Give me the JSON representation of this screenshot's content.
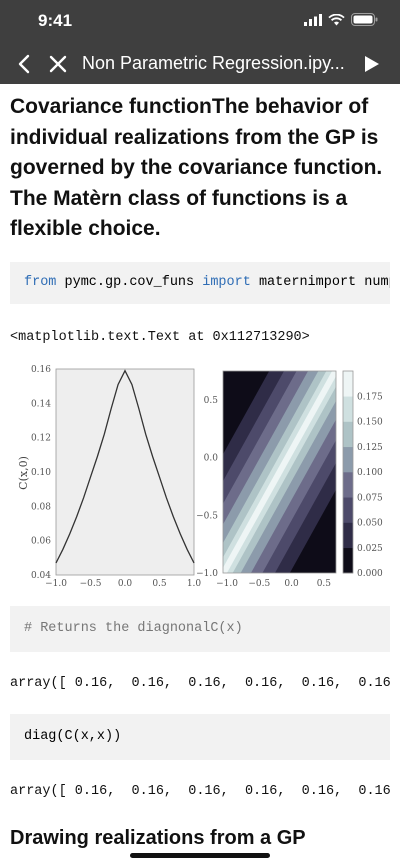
{
  "status_bar": {
    "time": "9:41"
  },
  "nav": {
    "title": "Non Parametric Regression.ipy..."
  },
  "heading": "Covariance functionThe behavior of individual realizations from the GP is governed by the covariance function. The Matèrn class of functions is a flexible choice.",
  "cells": {
    "code1": {
      "kw_from": "from",
      "module": " pymc.gp.cov_funs ",
      "kw_import": "import",
      "rest": " maternimport numpy"
    },
    "out1": "<matplotlib.text.Text at 0x112713290>",
    "code2": "# Returns the diagnonalC(x)",
    "out2": "array([ 0.16,  0.16,  0.16,  0.16,  0.16,  0.16",
    "code3": "diag(C(x,x))",
    "out3": "array([ 0.16,  0.16,  0.16,  0.16,  0.16,  0.16"
  },
  "next_heading": "Drawing realizations from a GP",
  "figure": {
    "left_plot": {
      "ylabel": "C(x,0)",
      "x_ticks": [
        "−1.0",
        "−0.5",
        "0.0",
        "0.5",
        "1.0"
      ],
      "y_ticks": [
        "0.04",
        "0.06",
        "0.08",
        "0.10",
        "0.12",
        "0.14",
        "0.16"
      ],
      "ylim": [
        0.04,
        0.16
      ],
      "xlim": [
        -1.0,
        1.0
      ]
    },
    "right_plot": {
      "x_ticks": [
        "−1.0",
        "−0.5",
        "0.0",
        "0.5"
      ],
      "y_ticks": [
        "−1.0",
        "−0.5",
        "0.0",
        "0.5"
      ]
    },
    "colorbar_ticks": [
      "0.000",
      "0.025",
      "0.050",
      "0.075",
      "0.100",
      "0.125",
      "0.150",
      "0.175"
    ],
    "colorbar_colors": [
      "#0e0c18",
      "#2f2c47",
      "#4d4a6a",
      "#6d6c8a",
      "#8c9bab",
      "#aec3c6",
      "#cfe0e0",
      "#eef5f5"
    ]
  },
  "chart_data": [
    {
      "type": "line",
      "title": "",
      "xlabel": "",
      "ylabel": "C(x,0)",
      "xlim": [
        -1.0,
        1.0
      ],
      "ylim": [
        0.04,
        0.16
      ],
      "series": [
        {
          "x": [
            -1.0,
            -0.9,
            -0.8,
            -0.7,
            -0.6,
            -0.5,
            -0.4,
            -0.3,
            -0.2,
            -0.1,
            0.0,
            0.1,
            0.2,
            0.3,
            0.4,
            0.5,
            0.6,
            0.7,
            0.8,
            0.9,
            1.0
          ],
          "values": [
            0.047,
            0.055,
            0.064,
            0.074,
            0.085,
            0.097,
            0.109,
            0.122,
            0.137,
            0.151,
            0.159,
            0.151,
            0.137,
            0.122,
            0.109,
            0.097,
            0.085,
            0.074,
            0.064,
            0.055,
            0.047
          ]
        }
      ]
    },
    {
      "type": "heatmap",
      "xlim": [
        -1.0,
        0.75
      ],
      "ylim": [
        -1.0,
        0.75
      ],
      "color_range": [
        0.0,
        0.175
      ]
    }
  ]
}
